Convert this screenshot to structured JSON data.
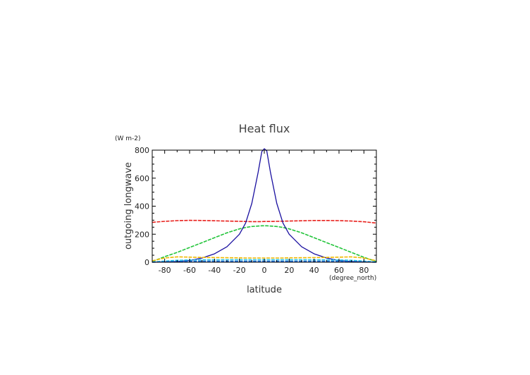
{
  "chart_data": {
    "type": "line",
    "title": "Heat flux",
    "xlabel": "latitude",
    "xunit": "(degree_north)",
    "ylabel": "outgoing longwave",
    "yunit": "(W m-2)",
    "xlim": [
      -90,
      90
    ],
    "ylim": [
      0,
      800
    ],
    "xticks": [
      -80,
      -60,
      -40,
      -20,
      0,
      20,
      40,
      60,
      80
    ],
    "yticks": [
      0,
      200,
      400,
      600,
      800
    ],
    "grid": false,
    "legend": "none",
    "x": [
      -90,
      -80,
      -70,
      -60,
      -50,
      -40,
      -30,
      -20,
      -15,
      -10,
      -5,
      -2,
      0,
      2,
      5,
      10,
      15,
      20,
      30,
      40,
      50,
      60,
      70,
      80,
      90
    ],
    "series": [
      {
        "color": "#e8201c",
        "style": "dashed",
        "values": [
          285,
          292,
          297,
          299,
          298,
          296,
          294,
          292,
          291,
          290,
          290,
          290,
          291,
          291,
          291,
          292,
          293,
          294,
          296,
          298,
          298,
          297,
          294,
          289,
          280
        ]
      },
      {
        "color": "#22c43a",
        "style": "dashed",
        "values": [
          5,
          40,
          70,
          105,
          140,
          175,
          210,
          238,
          248,
          255,
          258,
          260,
          260,
          260,
          258,
          255,
          248,
          238,
          210,
          175,
          140,
          105,
          70,
          35,
          5
        ]
      },
      {
        "color": "#1a10a0",
        "style": "solid",
        "values": [
          0,
          2,
          5,
          12,
          30,
          60,
          110,
          200,
          280,
          420,
          640,
          790,
          810,
          795,
          640,
          420,
          280,
          200,
          110,
          60,
          30,
          12,
          5,
          2,
          0
        ]
      },
      {
        "color": "#f0b800",
        "style": "dashed",
        "values": [
          10,
          30,
          38,
          36,
          34,
          33,
          32,
          31,
          30,
          30,
          30,
          30,
          30,
          30,
          30,
          30,
          30,
          31,
          32,
          33,
          34,
          36,
          38,
          30,
          10
        ]
      },
      {
        "color": "#30c8e8",
        "style": "dashed",
        "values": [
          2,
          8,
          14,
          16,
          17,
          17,
          18,
          18,
          18,
          18,
          18,
          18,
          18,
          18,
          18,
          18,
          18,
          18,
          18,
          17,
          17,
          16,
          14,
          8,
          2
        ]
      },
      {
        "color": "#1060d0",
        "style": "dashed",
        "values": [
          0,
          3,
          6,
          7,
          7,
          7,
          7,
          7,
          7,
          7,
          7,
          7,
          7,
          7,
          7,
          7,
          7,
          7,
          7,
          7,
          7,
          7,
          6,
          3,
          0
        ]
      }
    ]
  }
}
